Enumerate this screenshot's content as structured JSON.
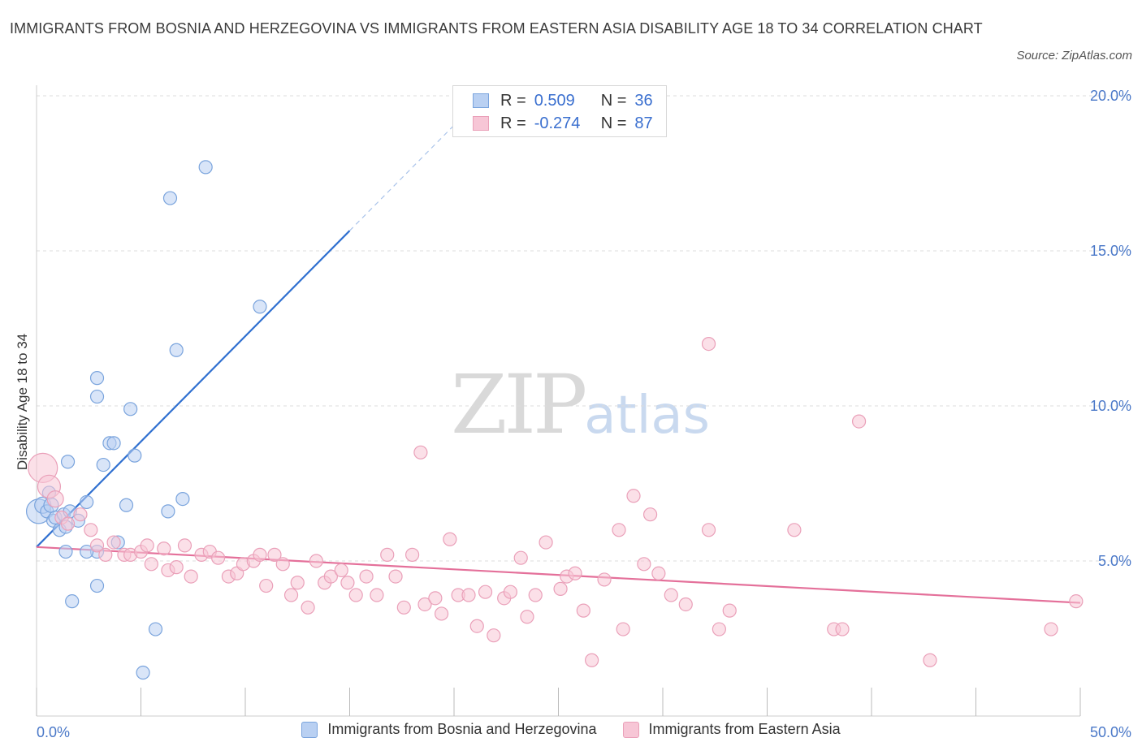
{
  "title": "IMMIGRANTS FROM BOSNIA AND HERZEGOVINA VS IMMIGRANTS FROM EASTERN ASIA DISABILITY AGE 18 TO 34 CORRELATION CHART",
  "source": "Source: ZipAtlas.com",
  "watermark": {
    "zip": "ZIP",
    "atlas": "atlas"
  },
  "legend": {
    "series1": {
      "r_label": "R =",
      "r_value": "0.509",
      "n_label": "N =",
      "n_value": "36"
    },
    "series2": {
      "r_label": "R =",
      "r_value": "-0.274",
      "n_label": "N =",
      "n_value": "87"
    }
  },
  "colors": {
    "blue_fill": "#b9d0f2",
    "blue_stroke": "#7aa4dd",
    "blue_line": "#3070d0",
    "pink_fill": "#f7c6d6",
    "pink_stroke": "#eaa0b9",
    "pink_line": "#e4709a",
    "grid": "#dcdcdc",
    "axis_text": "#4a78c8"
  },
  "chart_data": {
    "type": "scatter",
    "xlabel": "",
    "ylabel": "Disability Age 18 to 34",
    "xlim": [
      0,
      50
    ],
    "ylim": [
      0,
      20
    ],
    "x_tick_labels": [
      "0.0%",
      "50.0%"
    ],
    "y_ticks": [
      5,
      10,
      15,
      20
    ],
    "y_tick_labels": [
      "5.0%",
      "10.0%",
      "15.0%",
      "20.0%"
    ],
    "grid": true,
    "series": [
      {
        "name": "Immigrants from Bosnia and Herzegovina",
        "color": "#7aa4dd",
        "trend": {
          "x0": 0,
          "y0": 5.45,
          "x1": 15,
          "y1": 15.65,
          "dashed_to_x": 20
        },
        "points": [
          [
            0.1,
            6.6,
            15
          ],
          [
            0.3,
            6.8,
            10
          ],
          [
            0.5,
            6.6,
            8
          ],
          [
            0.6,
            7.2,
            8
          ],
          [
            0.7,
            6.8,
            9
          ],
          [
            0.8,
            6.3,
            8
          ],
          [
            0.9,
            6.4,
            8
          ],
          [
            1.1,
            6.0,
            8
          ],
          [
            1.3,
            6.5,
            8
          ],
          [
            1.4,
            6.1,
            8
          ],
          [
            1.5,
            8.2,
            8
          ],
          [
            1.6,
            6.6,
            8
          ],
          [
            1.7,
            3.7,
            8
          ],
          [
            1.4,
            5.3,
            8
          ],
          [
            2.0,
            6.3,
            8
          ],
          [
            2.4,
            6.9,
            8
          ],
          [
            2.9,
            5.3,
            8
          ],
          [
            2.9,
            4.2,
            8
          ],
          [
            2.9,
            10.9,
            8
          ],
          [
            2.9,
            10.3,
            8
          ],
          [
            3.2,
            8.1,
            8
          ],
          [
            3.5,
            8.8,
            8
          ],
          [
            3.7,
            8.8,
            8
          ],
          [
            3.9,
            5.6,
            8
          ],
          [
            4.3,
            6.8,
            8
          ],
          [
            4.5,
            9.9,
            8
          ],
          [
            4.7,
            8.4,
            8
          ],
          [
            5.1,
            1.4,
            8
          ],
          [
            5.7,
            2.8,
            8
          ],
          [
            6.3,
            6.6,
            8
          ],
          [
            6.4,
            16.7,
            8
          ],
          [
            6.7,
            11.8,
            8
          ],
          [
            7.0,
            7.0,
            8
          ],
          [
            8.1,
            17.7,
            8
          ],
          [
            10.7,
            13.2,
            8
          ],
          [
            2.4,
            5.3,
            8
          ]
        ]
      },
      {
        "name": "Immigrants from Eastern Asia",
        "color": "#eaa0b9",
        "trend": {
          "x0": 0,
          "y0": 5.45,
          "x1": 50,
          "y1": 3.65
        },
        "points": [
          [
            0.3,
            8.0,
            18
          ],
          [
            0.6,
            7.4,
            14
          ],
          [
            0.9,
            7.0,
            10
          ],
          [
            1.2,
            6.4,
            8
          ],
          [
            1.5,
            6.2,
            8
          ],
          [
            2.1,
            6.5,
            8
          ],
          [
            2.6,
            6.0,
            8
          ],
          [
            2.9,
            5.5,
            8
          ],
          [
            3.3,
            5.2,
            8
          ],
          [
            3.7,
            5.6,
            8
          ],
          [
            4.2,
            5.2,
            8
          ],
          [
            4.5,
            5.2,
            8
          ],
          [
            5.0,
            5.3,
            8
          ],
          [
            5.3,
            5.5,
            8
          ],
          [
            5.5,
            4.9,
            8
          ],
          [
            6.1,
            5.4,
            8
          ],
          [
            6.3,
            4.7,
            8
          ],
          [
            6.7,
            4.8,
            8
          ],
          [
            7.1,
            5.5,
            8
          ],
          [
            7.4,
            4.5,
            8
          ],
          [
            7.9,
            5.2,
            8
          ],
          [
            8.3,
            5.3,
            8
          ],
          [
            8.7,
            5.1,
            8
          ],
          [
            9.2,
            4.5,
            8
          ],
          [
            9.6,
            4.6,
            8
          ],
          [
            9.9,
            4.9,
            8
          ],
          [
            10.4,
            5.0,
            8
          ],
          [
            10.7,
            5.2,
            8
          ],
          [
            11.0,
            4.2,
            8
          ],
          [
            11.4,
            5.2,
            8
          ],
          [
            11.8,
            4.9,
            8
          ],
          [
            12.2,
            3.9,
            8
          ],
          [
            12.5,
            4.3,
            8
          ],
          [
            13.0,
            3.5,
            8
          ],
          [
            13.4,
            5.0,
            8
          ],
          [
            13.8,
            4.3,
            8
          ],
          [
            14.1,
            4.5,
            8
          ],
          [
            14.6,
            4.7,
            8
          ],
          [
            14.9,
            4.3,
            8
          ],
          [
            15.3,
            3.9,
            8
          ],
          [
            15.8,
            4.5,
            8
          ],
          [
            16.3,
            3.9,
            8
          ],
          [
            16.8,
            5.2,
            8
          ],
          [
            17.2,
            4.5,
            8
          ],
          [
            17.6,
            3.5,
            8
          ],
          [
            18.0,
            5.2,
            8
          ],
          [
            18.6,
            3.6,
            8
          ],
          [
            19.1,
            3.8,
            8
          ],
          [
            19.4,
            3.3,
            8
          ],
          [
            19.8,
            5.7,
            8
          ],
          [
            20.2,
            3.9,
            8
          ],
          [
            20.7,
            3.9,
            8
          ],
          [
            21.1,
            2.9,
            8
          ],
          [
            21.5,
            4.0,
            8
          ],
          [
            21.9,
            2.6,
            8
          ],
          [
            22.4,
            3.8,
            8
          ],
          [
            22.7,
            4.0,
            8
          ],
          [
            23.2,
            5.1,
            8
          ],
          [
            23.5,
            3.2,
            8
          ],
          [
            23.9,
            3.9,
            8
          ],
          [
            24.4,
            5.6,
            8
          ],
          [
            25.1,
            4.1,
            8
          ],
          [
            25.4,
            4.5,
            8
          ],
          [
            25.8,
            4.6,
            8
          ],
          [
            26.2,
            3.4,
            8
          ],
          [
            26.6,
            1.8,
            8
          ],
          [
            27.2,
            4.4,
            8
          ],
          [
            27.9,
            6.0,
            8
          ],
          [
            28.1,
            2.8,
            8
          ],
          [
            28.6,
            7.1,
            8
          ],
          [
            29.1,
            4.9,
            8
          ],
          [
            29.4,
            6.5,
            8
          ],
          [
            29.8,
            4.6,
            8
          ],
          [
            30.4,
            3.9,
            8
          ],
          [
            31.1,
            3.6,
            8
          ],
          [
            32.2,
            12.0,
            8
          ],
          [
            32.2,
            6.0,
            8
          ],
          [
            32.7,
            2.8,
            8
          ],
          [
            33.2,
            3.4,
            8
          ],
          [
            36.3,
            6.0,
            8
          ],
          [
            38.2,
            2.8,
            8
          ],
          [
            38.6,
            2.8,
            8
          ],
          [
            39.4,
            9.5,
            8
          ],
          [
            42.8,
            1.8,
            8
          ],
          [
            48.6,
            2.8,
            8
          ],
          [
            49.8,
            3.7,
            8
          ],
          [
            18.4,
            8.5,
            8
          ]
        ]
      }
    ]
  }
}
